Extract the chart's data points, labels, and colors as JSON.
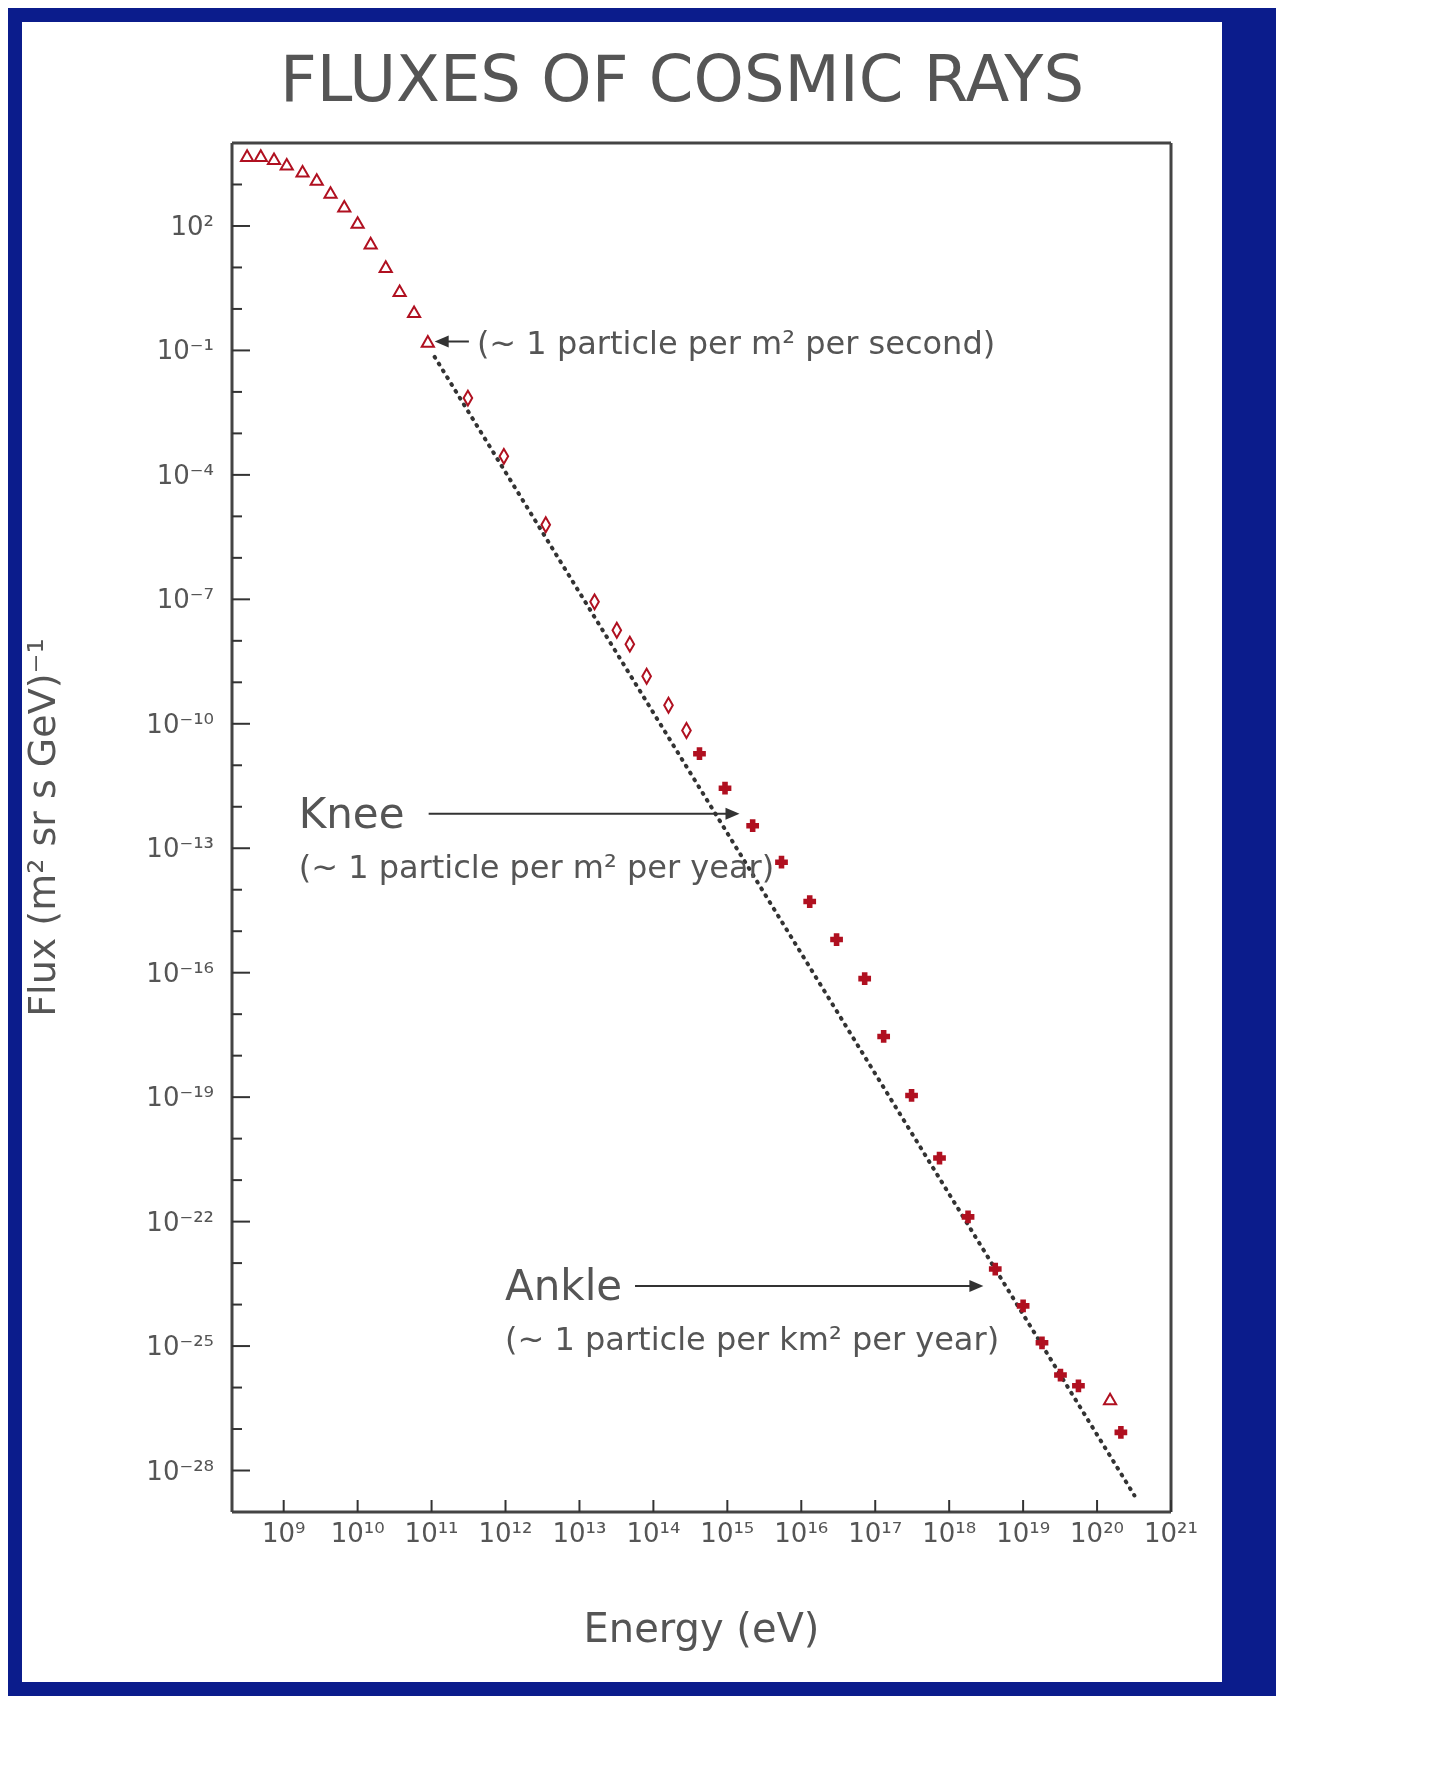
{
  "chart_data": {
    "type": "scatter",
    "title": "FLUXES OF COSMIC RAYS",
    "xlabel": "Energy (eV)",
    "ylabel": "Flux (m² sr s GeV)⁻¹",
    "log": "xy",
    "xlim": [
      200000000.0,
      1e+21
    ],
    "ylim": [
      1e-29,
      10000.0
    ],
    "xticks": [
      {
        "value": 1000000000.0,
        "label": "10⁹"
      },
      {
        "value": 10000000000.0,
        "label": "10¹⁰"
      },
      {
        "value": 100000000000.0,
        "label": "10¹¹"
      },
      {
        "value": 1000000000000.0,
        "label": "10¹²"
      },
      {
        "value": 10000000000000.0,
        "label": "10¹³"
      },
      {
        "value": 100000000000000.0,
        "label": "10¹⁴"
      },
      {
        "value": 1000000000000000.0,
        "label": "10¹⁵"
      },
      {
        "value": 1e+16,
        "label": "10¹⁶"
      },
      {
        "value": 1e+17,
        "label": "10¹⁷"
      },
      {
        "value": 1e+18,
        "label": "10¹⁸"
      },
      {
        "value": 1e+19,
        "label": "10¹⁹"
      },
      {
        "value": 1e+20,
        "label": "10²⁰"
      },
      {
        "value": 1e+21,
        "label": "10²¹"
      }
    ],
    "yticks": [
      {
        "value": 1000.0,
        "label": null
      },
      {
        "value": 100.0,
        "label": "10²"
      },
      {
        "value": 10.0,
        "label": null
      },
      {
        "value": 1,
        "label": null
      },
      {
        "value": 0.1,
        "label": "10⁻¹"
      },
      {
        "value": 0.01,
        "label": null
      },
      {
        "value": 0.001,
        "label": null
      },
      {
        "value": 0.0001,
        "label": "10⁻⁴"
      },
      {
        "value": 1e-05,
        "label": null
      },
      {
        "value": 1e-06,
        "label": null
      },
      {
        "value": 1e-07,
        "label": "10⁻⁷"
      },
      {
        "value": 1e-08,
        "label": null
      },
      {
        "value": 1e-09,
        "label": null
      },
      {
        "value": 1e-10,
        "label": "10⁻¹⁰"
      },
      {
        "value": 1e-11,
        "label": null
      },
      {
        "value": 1e-12,
        "label": null
      },
      {
        "value": 1e-13,
        "label": "10⁻¹³"
      },
      {
        "value": 1e-14,
        "label": null
      },
      {
        "value": 1e-15,
        "label": null
      },
      {
        "value": 1e-16,
        "label": "10⁻¹⁶"
      },
      {
        "value": 1e-17,
        "label": null
      },
      {
        "value": 1e-18,
        "label": null
      },
      {
        "value": 1e-19,
        "label": "10⁻¹⁹"
      },
      {
        "value": 1e-20,
        "label": null
      },
      {
        "value": 1e-21,
        "label": null
      },
      {
        "value": 1e-22,
        "label": "10⁻²²"
      },
      {
        "value": 1e-23,
        "label": null
      },
      {
        "value": 1e-24,
        "label": null
      },
      {
        "value": 1e-25,
        "label": "10⁻²⁵"
      },
      {
        "value": 1e-26,
        "label": null
      },
      {
        "value": 1e-27,
        "label": null
      },
      {
        "value": 1e-28,
        "label": "10⁻²⁸"
      }
    ],
    "series": [
      {
        "type": "line",
        "color": "#333333",
        "line_style": "dotted",
        "marker": "none",
        "x": [
          110000000000.0,
          3.2e+20
        ],
        "values": [
          0.07,
          2.5e-29
        ]
      },
      {
        "color": "#b01020",
        "marker": "triangle",
        "x": [
          320000000.0,
          490000000.0,
          740000000.0,
          1100000000.0,
          1800000000.0,
          2800000000.0,
          4300000000.0,
          6600000000.0,
          10000000000.0,
          15000000000.0,
          24000000000.0,
          37000000000.0,
          58000000000.0,
          89000000000.0,
          1.5e+20
        ],
        "values": [
          4500.0,
          4500.0,
          3800.0,
          2800.0,
          1900.0,
          1200.0,
          580.0,
          270.0,
          110.0,
          35,
          9.5,
          2.5,
          0.78,
          0.15,
          4.8e-27
        ]
      },
      {
        "color": "#b01020",
        "marker": "diamond",
        "x": [
          310000000000.0,
          950000000000.0,
          3500000000000.0,
          16000000000000.0,
          32000000000000.0,
          48000000000000.0,
          81000000000000.0,
          160000000000000.0,
          280000000000000.0
        ],
        "values": [
          0.0071,
          0.00028,
          6.3e-06,
          8.7e-08,
          1.8e-08,
          8.3e-09,
          1.4e-09,
          2.8e-10,
          6.9e-11
        ]
      },
      {
        "color": "#b01020",
        "marker": "cross",
        "x": [
          420000000000000.0,
          930000000000000.0,
          2200000000000000.0,
          5400000000000000.0,
          1.3e+16,
          3e+16,
          7.2e+16,
          1.3e+17,
          3.1e+17,
          7.4e+17,
          1.8e+18,
          4.2e+18,
          1e+19,
          1.8e+19,
          3.2e+19,
          5.6e+19,
          2.1e+20
        ],
        "values": [
          1.9e-11,
          2.8e-12,
          3.5e-13,
          4.6e-14,
          5.2e-15,
          6.3e-16,
          7.2e-17,
          2.9e-18,
          1.1e-19,
          3.4e-21,
          1.3e-22,
          7.2e-24,
          9.3e-25,
          1.2e-25,
          2e-26,
          1.1e-26,
          8.3e-28
        ]
      }
    ],
    "annotations": [
      "(~ 1 particle per m² per second)",
      "Knee\n(~ 1 particle per m² per year)",
      "Ankle\n(~ 1 particle per km² per year)"
    ]
  }
}
